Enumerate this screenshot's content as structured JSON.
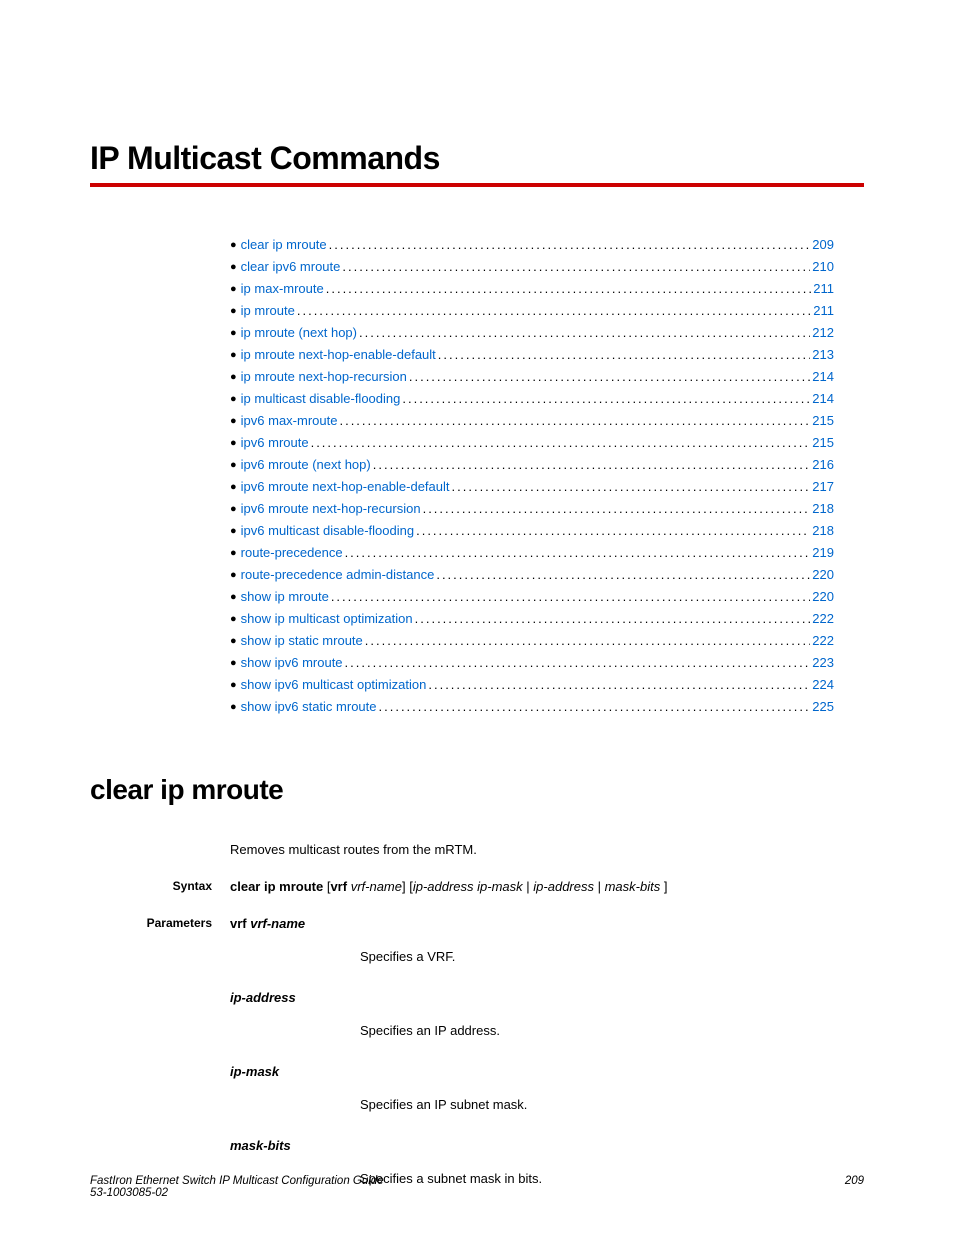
{
  "chapter_title": "IP Multicast Commands",
  "toc": [
    {
      "label": "clear ip mroute",
      "page": "209"
    },
    {
      "label": "clear ipv6 mroute",
      "page": "210"
    },
    {
      "label": "ip max-mroute",
      "page": "211"
    },
    {
      "label": "ip mroute",
      "page": "211"
    },
    {
      "label": "ip mroute (next hop)",
      "page": "212"
    },
    {
      "label": "ip mroute next-hop-enable-default",
      "page": "213"
    },
    {
      "label": "ip mroute next-hop-recursion",
      "page": "214"
    },
    {
      "label": "ip multicast disable-flooding",
      "page": "214"
    },
    {
      "label": "ipv6 max-mroute",
      "page": "215"
    },
    {
      "label": "ipv6 mroute",
      "page": "215"
    },
    {
      "label": "ipv6 mroute (next hop)",
      "page": "216"
    },
    {
      "label": "ipv6 mroute next-hop-enable-default",
      "page": "217"
    },
    {
      "label": "ipv6 mroute next-hop-recursion",
      "page": "218"
    },
    {
      "label": "ipv6 multicast disable-flooding",
      "page": "218"
    },
    {
      "label": "route-precedence",
      "page": "219"
    },
    {
      "label": "route-precedence admin-distance",
      "page": "220"
    },
    {
      "label": "show ip mroute",
      "page": "220"
    },
    {
      "label": "show ip multicast optimization ",
      "page": "222"
    },
    {
      "label": "show ip static mroute",
      "page": "222"
    },
    {
      "label": "show ipv6 mroute",
      "page": "223"
    },
    {
      "label": "show ipv6 multicast optimization ",
      "page": "224"
    },
    {
      "label": "show ipv6 static mroute",
      "page": "225"
    }
  ],
  "section_title": "clear ip mroute",
  "description": "Removes multicast routes from the mRTM.",
  "labels": {
    "syntax": "Syntax",
    "parameters": "Parameters"
  },
  "syntax": {
    "cmd": "clear ip mroute",
    "open1": " [",
    "kw_vrf": "vrf",
    "sp1": " ",
    "vrf_name": "vrf-name",
    "close1": "] [",
    "ip_address": "ip-address",
    "sp2": " ",
    "ip_mask": "ip-mask",
    "pipe1": " | ",
    "ip_address2": "ip-address",
    "pipe2": " | ",
    "mask_bits": "mask-bits",
    "close2": " ]"
  },
  "params": [
    {
      "name_bold": "vrf ",
      "name_italic": "vrf-name",
      "desc": "Specifies a VRF."
    },
    {
      "name_bold": "",
      "name_italic": "ip-address",
      "desc": "Specifies an IP address."
    },
    {
      "name_bold": "",
      "name_italic": "ip-mask",
      "desc": "Specifies an IP subnet mask."
    },
    {
      "name_bold": "",
      "name_italic": "mask-bits",
      "desc": "Specifies a subnet mask in bits."
    }
  ],
  "footer": {
    "title": "FastIron Ethernet Switch IP Multicast Configuration Guide",
    "doc": "53-1003085-02",
    "page": "209"
  },
  "colors": {
    "rule": "#cc0000",
    "link": "#0066cc",
    "text": "#000000",
    "bg": "#ffffff"
  }
}
